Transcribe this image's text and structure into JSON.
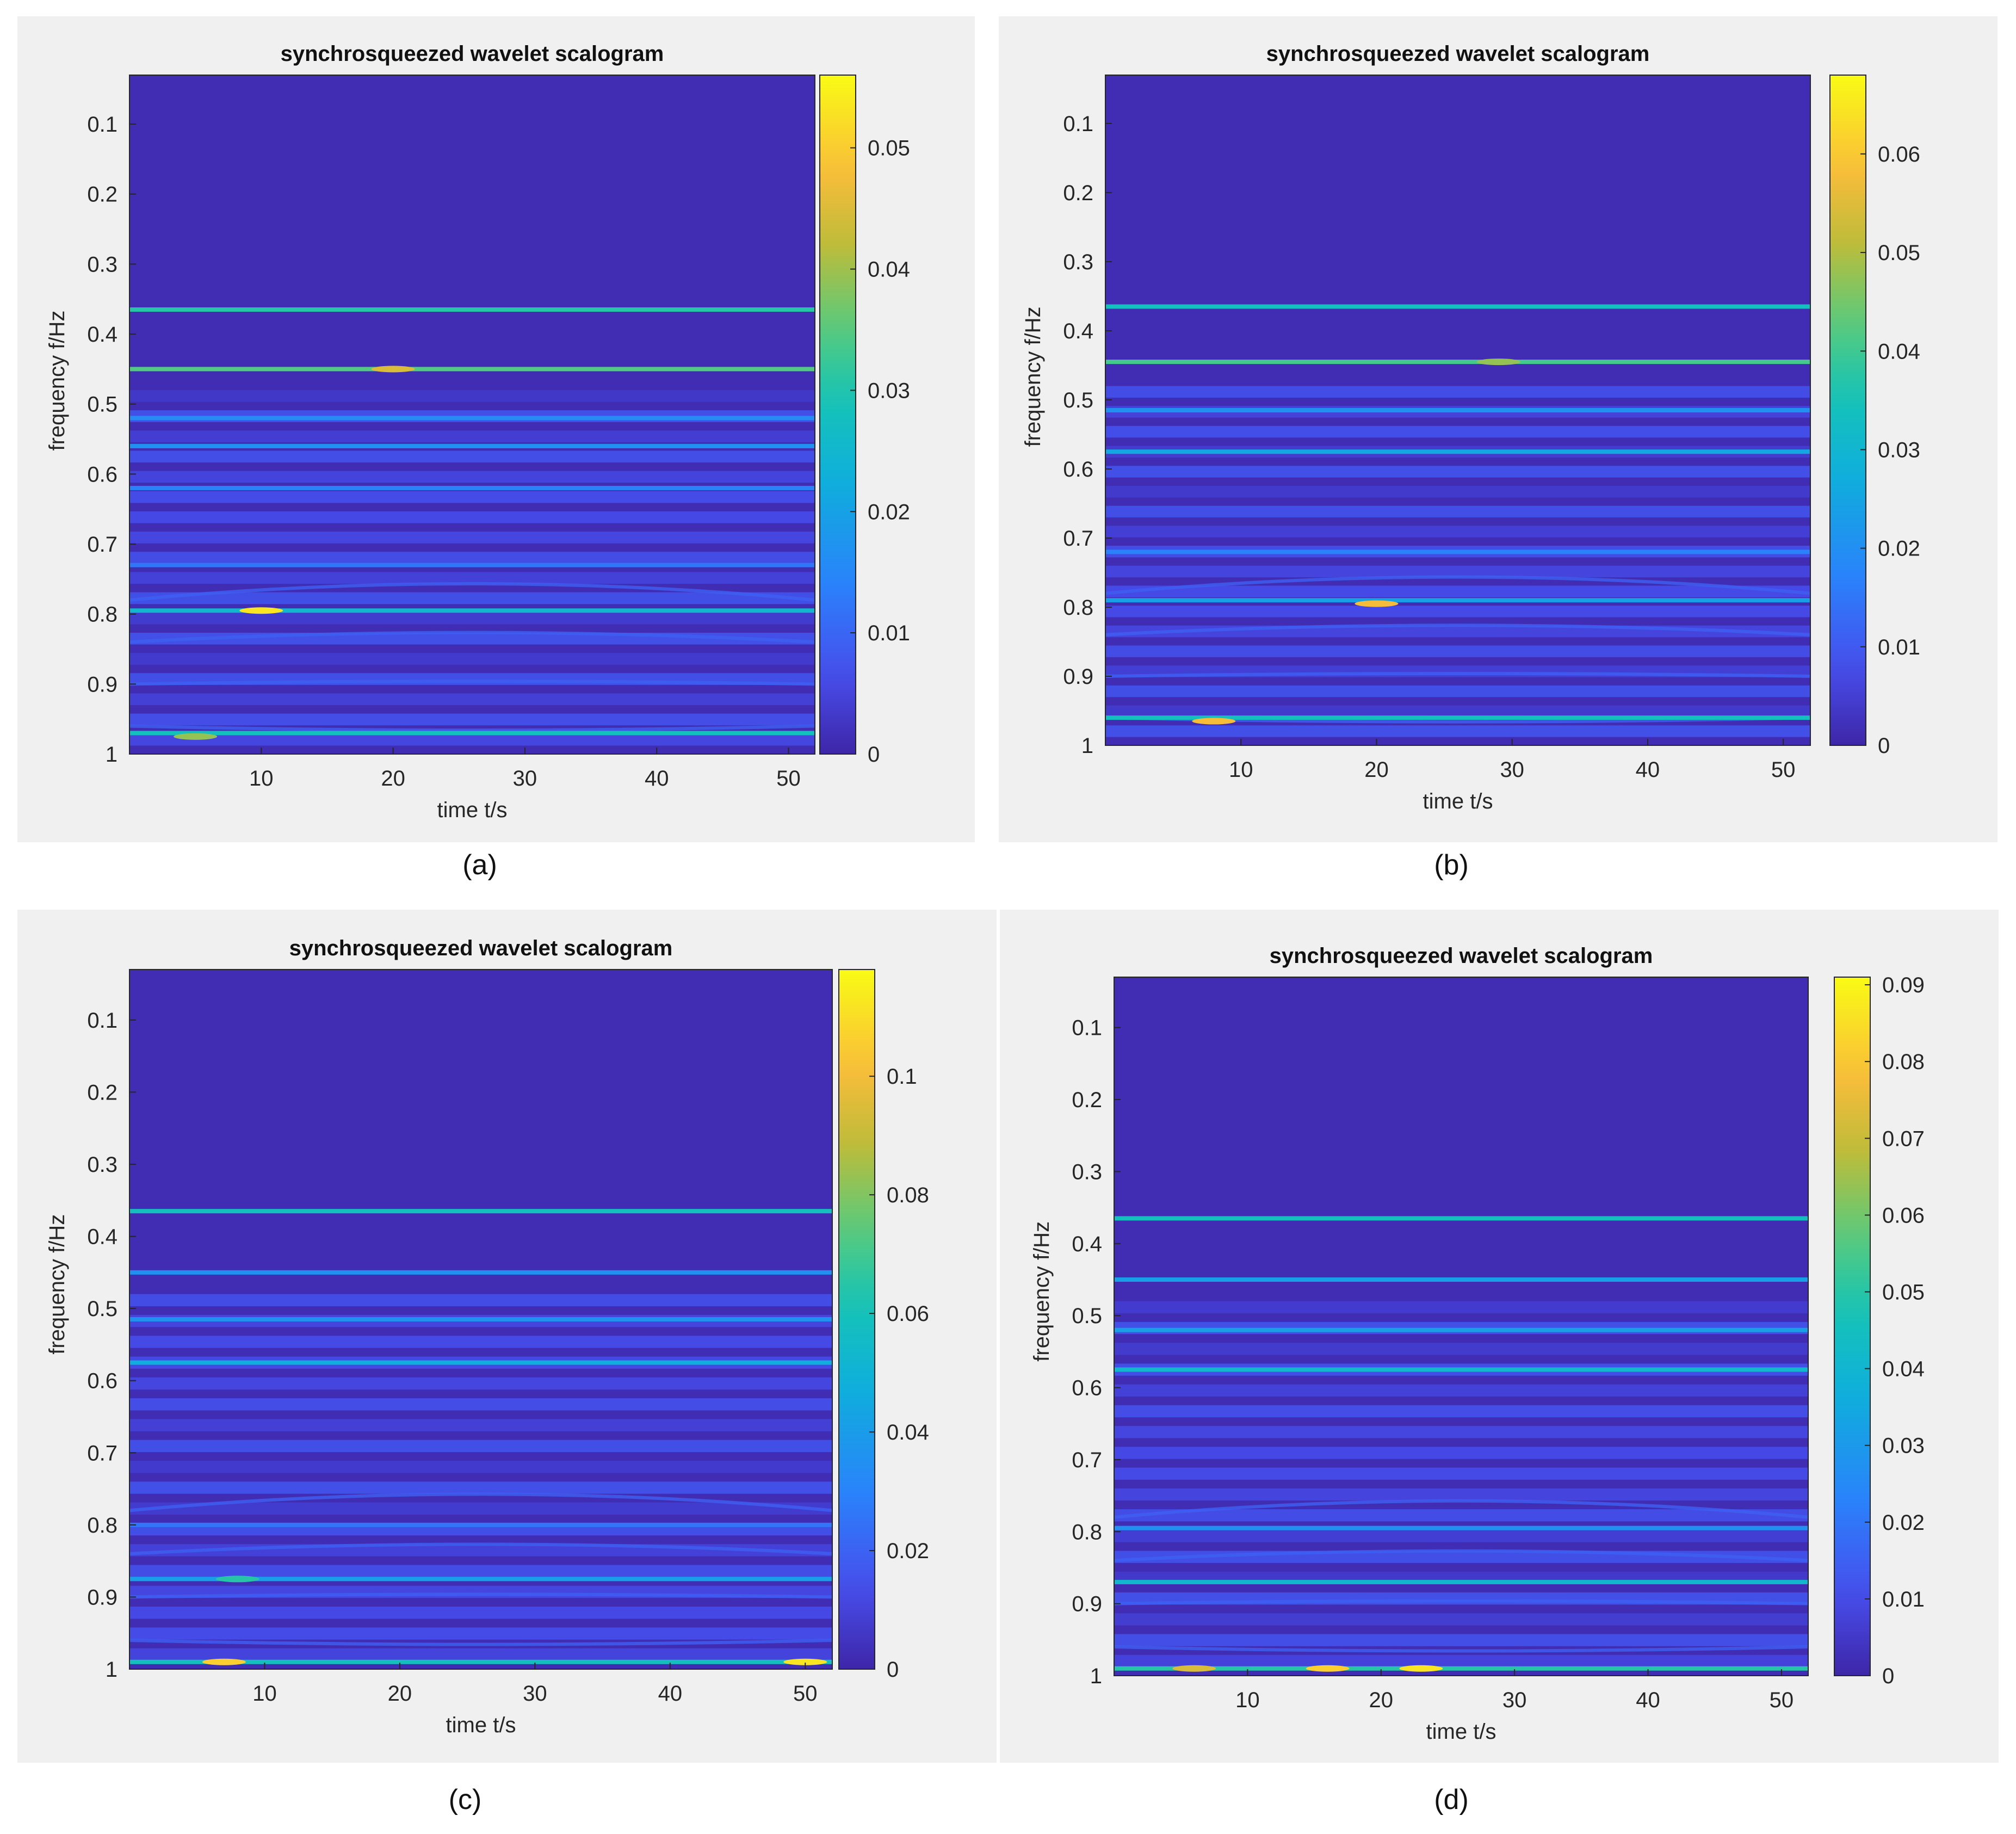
{
  "chart_data": [
    {
      "id": "a",
      "type": "heatmap",
      "title": "synchrosqueezed wavelet scalogram",
      "xlabel": "time t/s",
      "ylabel": "frequency f/Hz",
      "caption": "(a)",
      "xlim": [
        0,
        52
      ],
      "ylim": [
        0.03,
        1.0
      ],
      "x_ticks": [
        10,
        20,
        30,
        40,
        50
      ],
      "y_ticks": [
        0.1,
        0.2,
        0.3,
        0.4,
        0.5,
        0.6,
        0.7,
        0.8,
        0.9,
        1
      ],
      "colorbar_range": [
        0,
        0.056
      ],
      "colorbar_ticks": [
        0,
        0.01,
        0.02,
        0.03,
        0.04,
        0.05
      ],
      "ridges": [
        {
          "freq": 0.365,
          "level": 0.55
        },
        {
          "freq": 0.45,
          "level": 0.62
        },
        {
          "freq": 0.52,
          "level": 0.28
        },
        {
          "freq": 0.56,
          "level": 0.3
        },
        {
          "freq": 0.62,
          "level": 0.25
        },
        {
          "freq": 0.73,
          "level": 0.22
        },
        {
          "freq": 0.795,
          "level": 0.45
        },
        {
          "freq": 0.97,
          "level": 0.5
        }
      ],
      "hotspots": [
        {
          "time": 10,
          "freq": 0.795,
          "level": 0.95
        },
        {
          "time": 20,
          "freq": 0.45,
          "level": 0.8
        },
        {
          "time": 5,
          "freq": 0.975,
          "level": 0.7
        }
      ]
    },
    {
      "id": "b",
      "type": "heatmap",
      "title": "synchrosqueezed wavelet scalogram",
      "xlabel": "time t/s",
      "ylabel": "frequency f/Hz",
      "caption": "(b)",
      "xlim": [
        0,
        52
      ],
      "ylim": [
        0.03,
        1.0
      ],
      "x_ticks": [
        10,
        20,
        30,
        40,
        50
      ],
      "y_ticks": [
        0.1,
        0.2,
        0.3,
        0.4,
        0.5,
        0.6,
        0.7,
        0.8,
        0.9,
        1
      ],
      "colorbar_range": [
        0,
        0.068
      ],
      "colorbar_ticks": [
        0,
        0.01,
        0.02,
        0.03,
        0.04,
        0.05,
        0.06
      ],
      "ridges": [
        {
          "freq": 0.365,
          "level": 0.5
        },
        {
          "freq": 0.445,
          "level": 0.6
        },
        {
          "freq": 0.515,
          "level": 0.3
        },
        {
          "freq": 0.575,
          "level": 0.38
        },
        {
          "freq": 0.72,
          "level": 0.25
        },
        {
          "freq": 0.79,
          "level": 0.35
        },
        {
          "freq": 0.96,
          "level": 0.5
        }
      ],
      "hotspots": [
        {
          "time": 8,
          "freq": 0.965,
          "level": 0.85
        },
        {
          "time": 20,
          "freq": 0.795,
          "level": 0.85
        },
        {
          "time": 29,
          "freq": 0.445,
          "level": 0.7
        }
      ]
    },
    {
      "id": "c",
      "type": "heatmap",
      "title": "synchrosqueezed wavelet scalogram",
      "xlabel": "time t/s",
      "ylabel": "frequency f/Hz",
      "caption": "(c)",
      "xlim": [
        0,
        52
      ],
      "ylim": [
        0.03,
        1.0
      ],
      "x_ticks": [
        10,
        20,
        30,
        40,
        50
      ],
      "y_ticks": [
        0.1,
        0.2,
        0.3,
        0.4,
        0.5,
        0.6,
        0.7,
        0.8,
        0.9,
        1
      ],
      "colorbar_range": [
        0,
        0.118
      ],
      "colorbar_ticks": [
        0,
        0.02,
        0.04,
        0.06,
        0.08,
        0.1
      ],
      "ridges": [
        {
          "freq": 0.365,
          "level": 0.5
        },
        {
          "freq": 0.45,
          "level": 0.3
        },
        {
          "freq": 0.515,
          "level": 0.3
        },
        {
          "freq": 0.575,
          "level": 0.4
        },
        {
          "freq": 0.8,
          "level": 0.22
        },
        {
          "freq": 0.875,
          "level": 0.35
        },
        {
          "freq": 0.99,
          "level": 0.5
        }
      ],
      "hotspots": [
        {
          "time": 7,
          "freq": 0.99,
          "level": 0.9
        },
        {
          "time": 50,
          "freq": 0.99,
          "level": 0.95
        },
        {
          "time": 8,
          "freq": 0.875,
          "level": 0.55
        }
      ]
    },
    {
      "id": "d",
      "type": "heatmap",
      "title": "synchrosqueezed wavelet scalogram",
      "xlabel": "time t/s",
      "ylabel": "frequency f/Hz",
      "caption": "(d)",
      "xlim": [
        0,
        52
      ],
      "ylim": [
        0.03,
        1.0
      ],
      "x_ticks": [
        10,
        20,
        30,
        40,
        50
      ],
      "y_ticks": [
        0.1,
        0.2,
        0.3,
        0.4,
        0.5,
        0.6,
        0.7,
        0.8,
        0.9,
        1
      ],
      "colorbar_range": [
        0,
        0.091
      ],
      "colorbar_ticks": [
        0,
        0.01,
        0.02,
        0.03,
        0.04,
        0.05,
        0.06,
        0.07,
        0.08,
        0.09
      ],
      "ridges": [
        {
          "freq": 0.365,
          "level": 0.5
        },
        {
          "freq": 0.45,
          "level": 0.35
        },
        {
          "freq": 0.52,
          "level": 0.35
        },
        {
          "freq": 0.575,
          "level": 0.45
        },
        {
          "freq": 0.795,
          "level": 0.3
        },
        {
          "freq": 0.87,
          "level": 0.45
        },
        {
          "freq": 0.99,
          "level": 0.55
        }
      ],
      "hotspots": [
        {
          "time": 16,
          "freq": 0.99,
          "level": 0.9
        },
        {
          "time": 23,
          "freq": 0.99,
          "level": 0.95
        },
        {
          "time": 6,
          "freq": 0.99,
          "level": 0.8
        }
      ]
    }
  ]
}
